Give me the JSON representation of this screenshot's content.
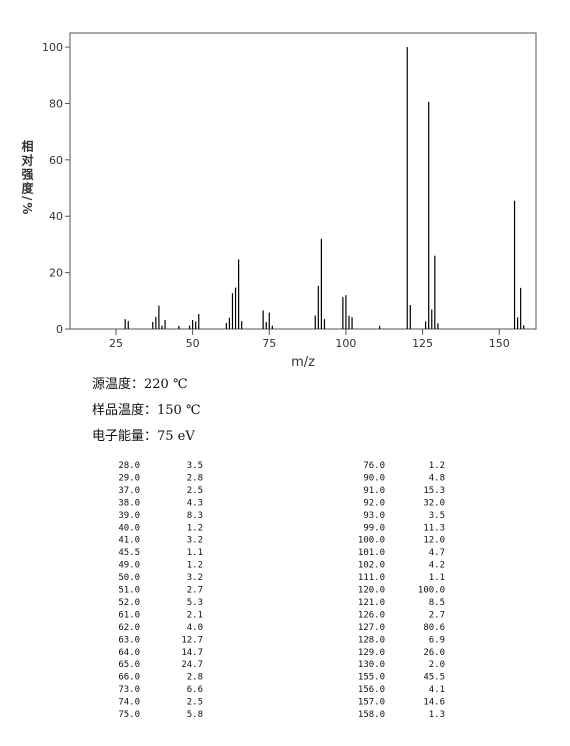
{
  "chart_data": {
    "type": "bar",
    "xlabel": "m/z",
    "ylabel": "相对强度/%",
    "x": [
      28,
      29,
      37,
      38,
      39,
      40,
      41,
      45.5,
      49,
      50,
      51,
      52,
      61,
      62,
      63,
      64,
      65,
      66,
      73,
      74,
      75,
      76,
      90,
      91,
      92,
      93,
      99,
      100,
      101,
      102,
      111,
      120,
      121,
      126,
      127,
      128,
      129,
      130,
      155,
      156,
      157,
      158
    ],
    "values": [
      3.5,
      2.8,
      2.5,
      4.3,
      8.3,
      1.2,
      3.2,
      1.1,
      1.2,
      3.2,
      2.7,
      5.3,
      2.1,
      4.0,
      12.7,
      14.7,
      24.7,
      2.8,
      6.6,
      2.5,
      5.8,
      1.2,
      4.8,
      15.3,
      32.0,
      3.5,
      11.3,
      12.0,
      4.7,
      4.2,
      1.1,
      100.0,
      8.5,
      2.7,
      80.6,
      6.9,
      26.0,
      2.0,
      45.5,
      4.1,
      14.6,
      1.3
    ],
    "color": "#000000",
    "xlim": [
      10,
      162
    ],
    "xticks": [
      25,
      50,
      75,
      100,
      125,
      150
    ],
    "ylim": [
      0,
      105
    ],
    "yticks": [
      0,
      20,
      40,
      60,
      80,
      100
    ]
  },
  "info": [
    "源温度：220 ℃",
    "样品温度：150 ℃",
    "电子能量：75 eV"
  ],
  "table": {
    "columns": [
      [
        [
          "28.0",
          "3.5"
        ],
        [
          "29.0",
          "2.8"
        ],
        [
          "37.0",
          "2.5"
        ],
        [
          "38.0",
          "4.3"
        ],
        [
          "39.0",
          "8.3"
        ],
        [
          "40.0",
          "1.2"
        ],
        [
          "41.0",
          "3.2"
        ],
        [
          "45.5",
          "1.1"
        ],
        [
          "49.0",
          "1.2"
        ],
        [
          "50.0",
          "3.2"
        ],
        [
          "51.0",
          "2.7"
        ],
        [
          "52.0",
          "5.3"
        ],
        [
          "61.0",
          "2.1"
        ],
        [
          "62.0",
          "4.0"
        ],
        [
          "63.0",
          "12.7"
        ],
        [
          "64.0",
          "14.7"
        ],
        [
          "65.0",
          "24.7"
        ],
        [
          "66.0",
          "2.8"
        ],
        [
          "73.0",
          "6.6"
        ],
        [
          "74.0",
          "2.5"
        ],
        [
          "75.0",
          "5.8"
        ]
      ],
      [
        [
          "76.0",
          "1.2"
        ],
        [
          "90.0",
          "4.8"
        ],
        [
          "91.0",
          "15.3"
        ],
        [
          "92.0",
          "32.0"
        ],
        [
          "93.0",
          "3.5"
        ],
        [
          "99.0",
          "11.3"
        ],
        [
          "100.0",
          "12.0"
        ],
        [
          "101.0",
          "4.7"
        ],
        [
          "102.0",
          "4.2"
        ],
        [
          "111.0",
          "1.1"
        ],
        [
          "120.0",
          "100.0"
        ],
        [
          "121.0",
          "8.5"
        ],
        [
          "126.0",
          "2.7"
        ],
        [
          "127.0",
          "80.6"
        ],
        [
          "128.0",
          "6.9"
        ],
        [
          "129.0",
          "26.0"
        ],
        [
          "130.0",
          "2.0"
        ],
        [
          "155.0",
          "45.5"
        ],
        [
          "156.0",
          "4.1"
        ],
        [
          "157.0",
          "14.6"
        ],
        [
          "158.0",
          "1.3"
        ]
      ]
    ]
  }
}
